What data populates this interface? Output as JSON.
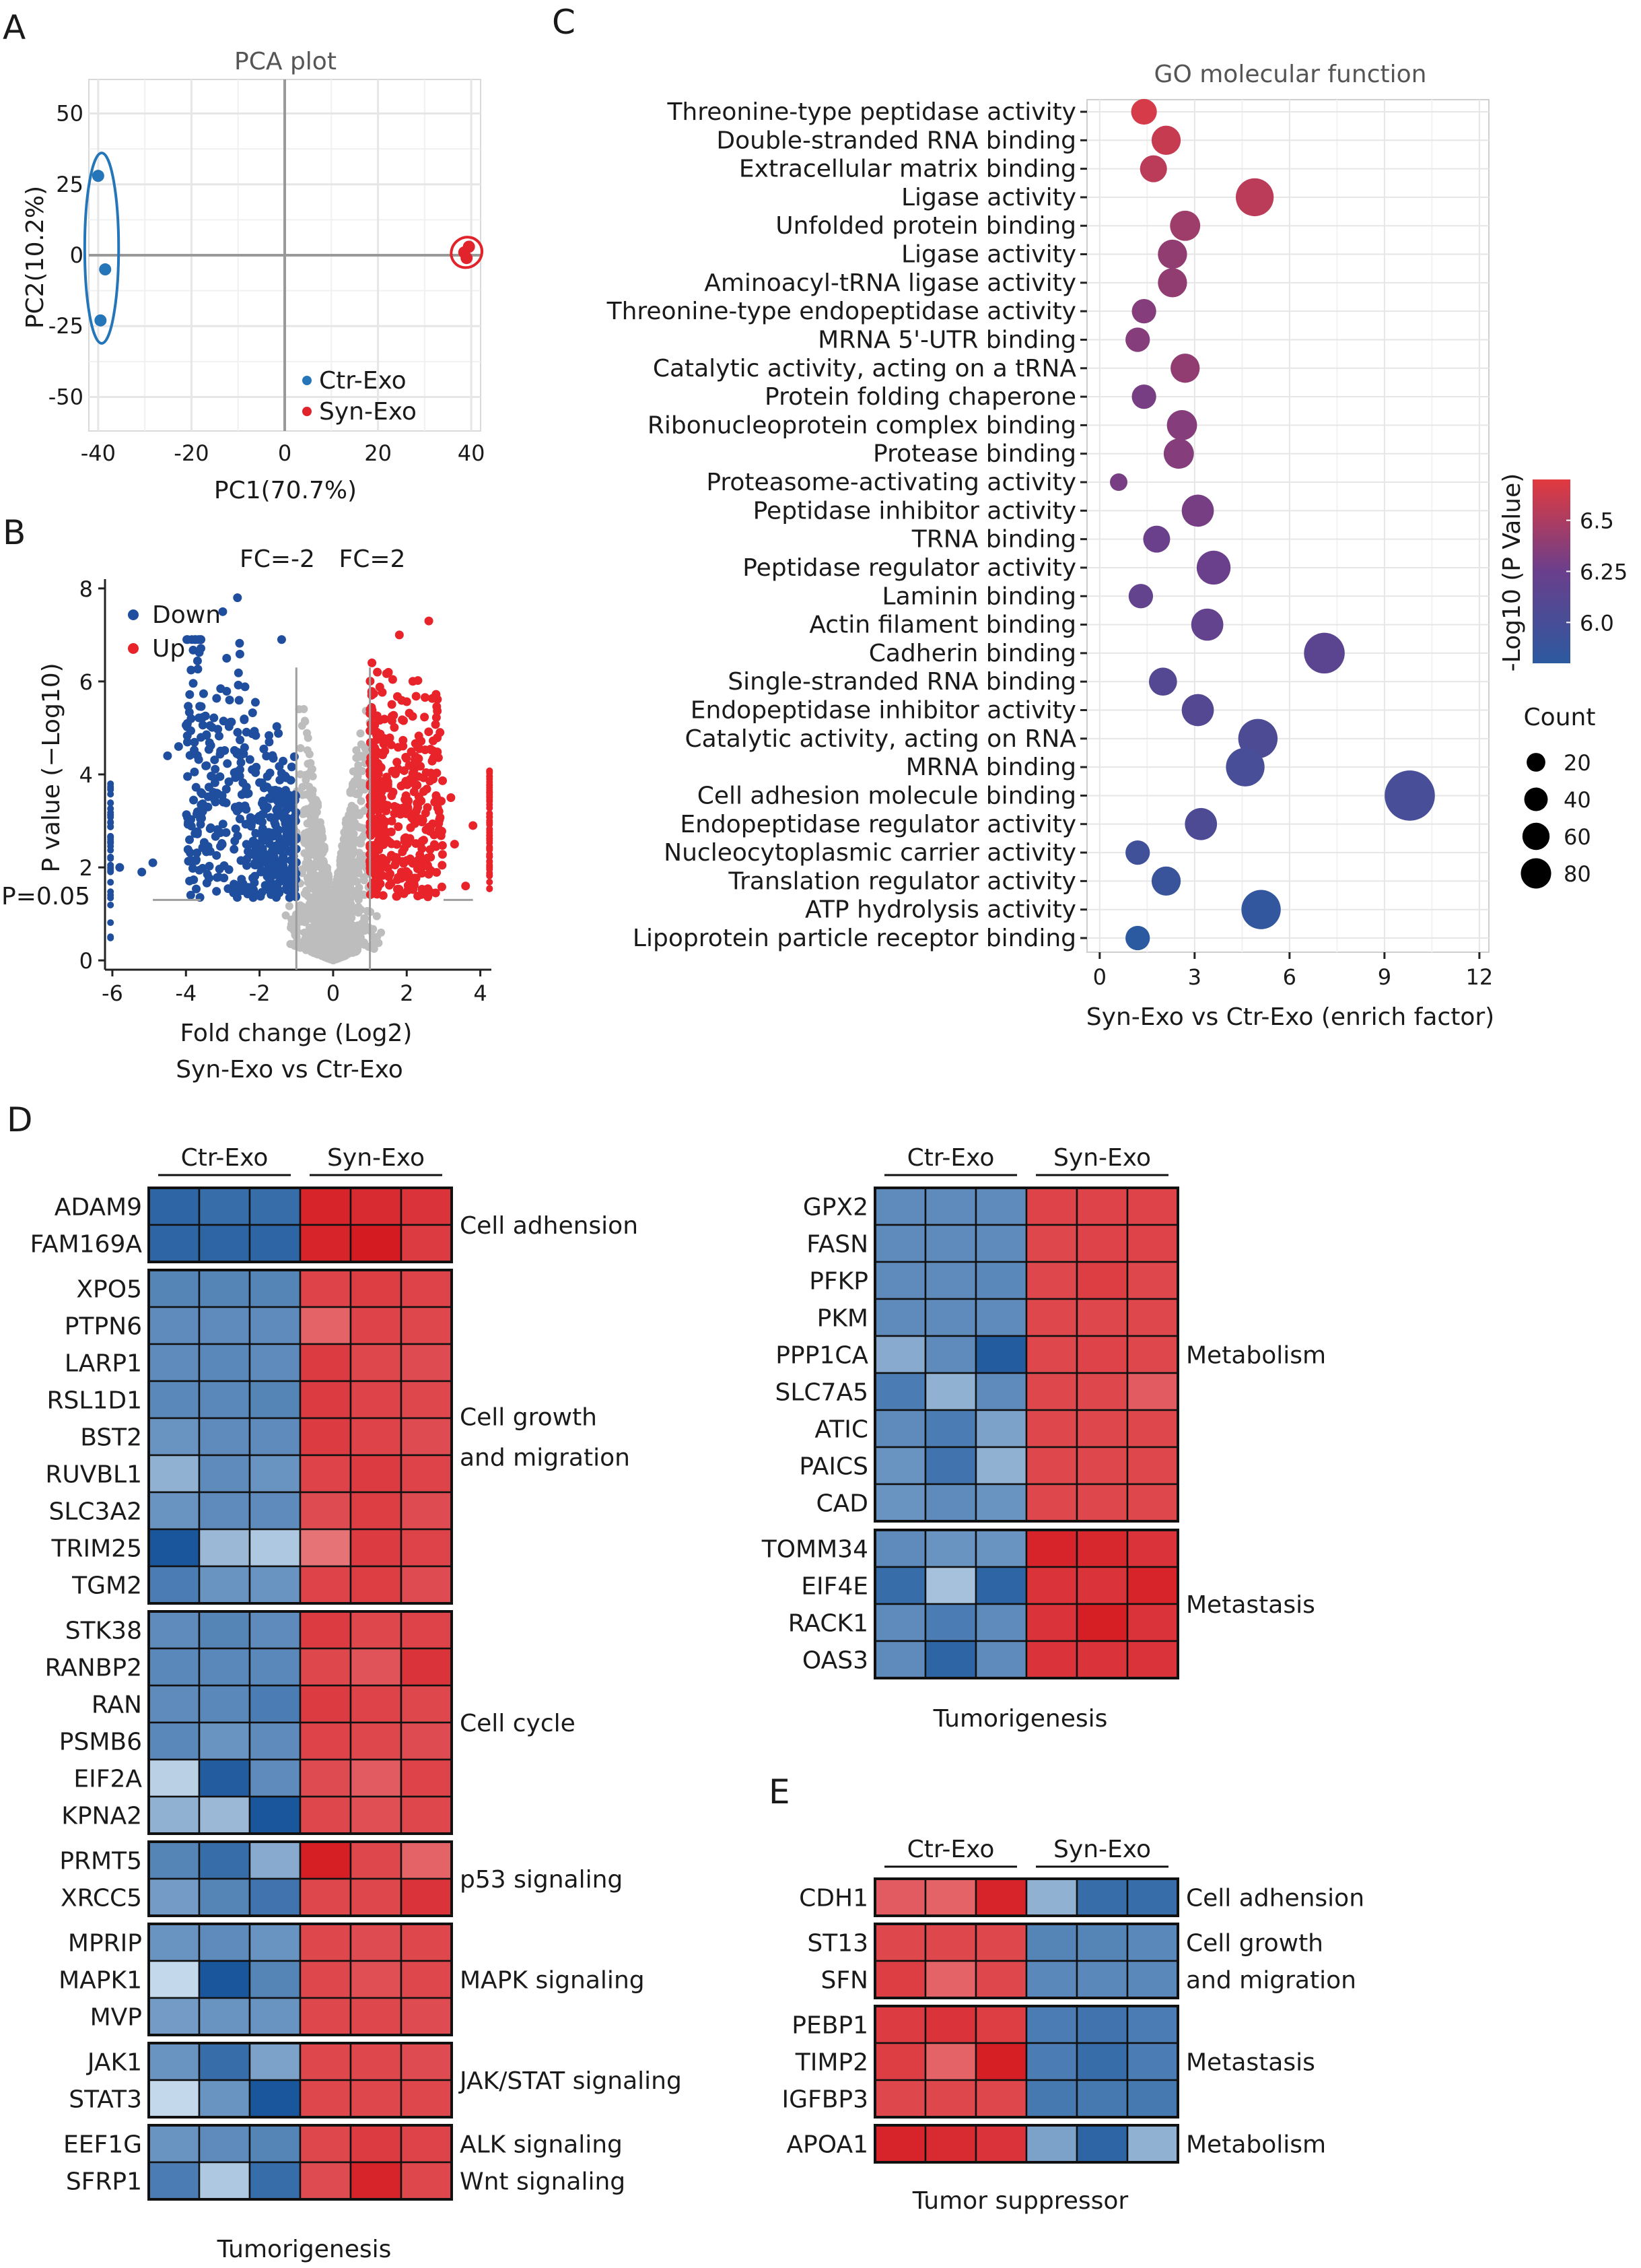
{
  "colors": {
    "red": "#e8232a",
    "blue": "#1f4e9e",
    "grey": "#bdbdbd",
    "pcaBlue": "#2476b8",
    "pcaRed": "#e1242b"
  },
  "panels": {
    "A": "A",
    "B": "B",
    "C": "C",
    "D": "D",
    "E": "E"
  },
  "chart_data": [
    {
      "panel": "A",
      "type": "scatter",
      "title": "PCA plot",
      "xlabel": "PC1(70.7%)",
      "ylabel": "PC2(10.2%)",
      "xlim": [
        -42,
        42
      ],
      "ylim": [
        -62,
        62
      ],
      "xticks": [
        -40,
        -20,
        0,
        20,
        40
      ],
      "yticks": [
        -50,
        -25,
        0,
        25,
        50
      ],
      "series": [
        {
          "name": "Ctr-Exo",
          "color": "#2476b8",
          "points": [
            [
              -40,
              28
            ],
            [
              -38.5,
              -5
            ],
            [
              -39.5,
              -23
            ]
          ]
        },
        {
          "name": "Syn-Exo",
          "color": "#e1242b",
          "points": [
            [
              38.5,
              1
            ],
            [
              39,
              -1
            ],
            [
              39.5,
              3
            ]
          ]
        }
      ],
      "legend": [
        "Ctr-Exo",
        "Syn-Exo"
      ]
    },
    {
      "panel": "B",
      "type": "scatter",
      "subtype": "volcano",
      "xlabel": "Fold change (Log2)",
      "sublabel": "Syn-Exo vs Ctr-Exo",
      "ylabel": "P value (−Log10)",
      "xlim": [
        -6.2,
        4.3
      ],
      "ylim": [
        -0.2,
        8.2
      ],
      "xticks": [
        -6,
        -4,
        -2,
        0,
        2,
        4
      ],
      "yticks": [
        0,
        2,
        4,
        6,
        8
      ],
      "thresholds": {
        "fc_low": -1,
        "fc_high": 1,
        "p": 1.3
      },
      "annotations": [
        "FC=-2",
        "FC=2",
        "P=0.05"
      ],
      "legend": [
        "Down",
        "Up"
      ],
      "categories": {
        "down_count": 480,
        "up_count": 420,
        "ns_count": 1500
      },
      "outliers": [
        [
          -2.6,
          7.8
        ],
        [
          -3.0,
          7.5
        ],
        [
          -1.4,
          6.9
        ],
        [
          2.6,
          7.3
        ],
        [
          1.8,
          7.0
        ],
        [
          -5.8,
          2.0
        ],
        [
          -5.2,
          1.9
        ],
        [
          -4.9,
          2.1
        ],
        [
          -4.2,
          4.6
        ],
        [
          -4.5,
          4.4
        ],
        [
          3.2,
          3.5
        ],
        [
          3.8,
          2.9
        ],
        [
          3.3,
          2.5
        ],
        [
          3.6,
          1.6
        ]
      ]
    },
    {
      "panel": "C",
      "type": "scatter",
      "subtype": "dot-plot",
      "title": "GO molecular function",
      "xlabel": "Syn-Exo vs Ctr-Exo (enrich factor)",
      "xlim": [
        -0.4,
        12.3
      ],
      "xticks": [
        0,
        3,
        6,
        9,
        12
      ],
      "colorbar": {
        "title": "-Log10 (P Value)",
        "ticks": [
          6.0,
          6.25,
          6.5
        ],
        "range": [
          5.8,
          6.7
        ]
      },
      "size_legend": {
        "title": "Count",
        "values": [
          20,
          40,
          60,
          80
        ]
      },
      "terms": [
        {
          "label": "Threonine-type peptidase activity",
          "x": 1.4,
          "count": 14,
          "p": 6.65
        },
        {
          "label": "Double-stranded RNA binding",
          "x": 2.1,
          "count": 20,
          "p": 6.6
        },
        {
          "label": "Extracellular matrix binding",
          "x": 1.7,
          "count": 16,
          "p": 6.55
        },
        {
          "label": "Ligase activity",
          "x": 4.9,
          "count": 40,
          "p": 6.55
        },
        {
          "label": "Unfolded protein binding",
          "x": 2.7,
          "count": 22,
          "p": 6.45
        },
        {
          "label": "Ligase activity",
          "x": 2.3,
          "count": 20,
          "p": 6.4
        },
        {
          "label": "Aminoacyl-tRNA ligase activity",
          "x": 2.3,
          "count": 20,
          "p": 6.4
        },
        {
          "label": "Threonine-type endopeptidase activity",
          "x": 1.4,
          "count": 12,
          "p": 6.35
        },
        {
          "label": "MRNA 5'-UTR binding",
          "x": 1.2,
          "count": 12,
          "p": 6.35
        },
        {
          "label": "Catalytic activity, acting on a tRNA",
          "x": 2.7,
          "count": 20,
          "p": 6.4
        },
        {
          "label": "Protein folding chaperone",
          "x": 1.4,
          "count": 12,
          "p": 6.3
        },
        {
          "label": "Ribonucleoprotein complex binding",
          "x": 2.6,
          "count": 22,
          "p": 6.35
        },
        {
          "label": "Protease binding",
          "x": 2.5,
          "count": 22,
          "p": 6.35
        },
        {
          "label": "Proteasome-activating activity",
          "x": 0.6,
          "count": 4,
          "p": 6.3
        },
        {
          "label": "Peptidase inhibitor activity",
          "x": 3.1,
          "count": 26,
          "p": 6.3
        },
        {
          "label": "TRNA binding",
          "x": 1.8,
          "count": 16,
          "p": 6.25
        },
        {
          "label": "Peptidase regulator activity",
          "x": 3.6,
          "count": 30,
          "p": 6.25
        },
        {
          "label": "Laminin binding",
          "x": 1.3,
          "count": 12,
          "p": 6.2
        },
        {
          "label": "Actin filament binding",
          "x": 3.4,
          "count": 26,
          "p": 6.2
        },
        {
          "label": "Cadherin binding",
          "x": 7.1,
          "count": 48,
          "p": 6.15
        },
        {
          "label": "Single-stranded RNA binding",
          "x": 2.0,
          "count": 18,
          "p": 6.1
        },
        {
          "label": "Endopeptidase inhibitor activity",
          "x": 3.1,
          "count": 26,
          "p": 6.1
        },
        {
          "label": "Catalytic activity, acting on RNA",
          "x": 5.0,
          "count": 44,
          "p": 6.05
        },
        {
          "label": "MRNA binding",
          "x": 4.6,
          "count": 42,
          "p": 6.0
        },
        {
          "label": "Cell adhesion molecule binding",
          "x": 9.8,
          "count": 80,
          "p": 6.0
        },
        {
          "label": "Endopeptidase regulator activity",
          "x": 3.2,
          "count": 26,
          "p": 6.05
        },
        {
          "label": "Nucleocytoplasmic carrier activity",
          "x": 1.2,
          "count": 12,
          "p": 5.95
        },
        {
          "label": "Translation regulator activity",
          "x": 2.1,
          "count": 20,
          "p": 5.9
        },
        {
          "label": "ATP hydrolysis activity",
          "x": 5.1,
          "count": 44,
          "p": 5.85
        },
        {
          "label": "Lipoprotein particle receptor binding",
          "x": 1.2,
          "count": 12,
          "p": 5.8
        }
      ]
    },
    {
      "panel": "D",
      "type": "heatmap",
      "footer": "Tumorigenesis",
      "groups": [
        "Ctr-Exo",
        "Syn-Exo"
      ],
      "blocks": [
        {
          "category": [
            "Cell adhension"
          ],
          "genes": [
            "ADAM9",
            "FAM169A"
          ],
          "values": [
            [
              -0.85,
              -0.8,
              -0.8,
              0.95,
              0.9,
              0.85
            ],
            [
              -0.85,
              -0.85,
              -0.85,
              0.95,
              1.0,
              0.8
            ]
          ]
        },
        {
          "category": [
            "Cell growth",
            "and migration"
          ],
          "genes": [
            "XPO5",
            "PTPN6",
            "LARP1",
            "RSL1D1",
            "BST2",
            "RUVBL1",
            "SLC3A2",
            "TRIM25",
            "TGM2"
          ],
          "values": [
            [
              -0.65,
              -0.65,
              -0.65,
              0.75,
              0.78,
              0.75
            ],
            [
              -0.6,
              -0.6,
              -0.6,
              0.55,
              0.75,
              0.72
            ],
            [
              -0.6,
              -0.62,
              -0.6,
              0.8,
              0.72,
              0.7
            ],
            [
              -0.62,
              -0.62,
              -0.65,
              0.8,
              0.75,
              0.72
            ],
            [
              -0.55,
              -0.6,
              -0.6,
              0.8,
              0.75,
              0.7
            ],
            [
              -0.35,
              -0.6,
              -0.55,
              0.75,
              0.8,
              0.75
            ],
            [
              -0.55,
              -0.6,
              -0.6,
              0.7,
              0.78,
              0.7
            ],
            [
              -0.95,
              -0.3,
              -0.2,
              0.45,
              0.8,
              0.75
            ],
            [
              -0.7,
              -0.55,
              -0.55,
              0.75,
              0.78,
              0.7
            ]
          ]
        },
        {
          "category": [
            "Cell cycle"
          ],
          "genes": [
            "STK38",
            "RANBP2",
            "RAN",
            "PSMB6",
            "EIF2A",
            "KPNA2"
          ],
          "values": [
            [
              -0.6,
              -0.65,
              -0.6,
              0.8,
              0.72,
              0.75
            ],
            [
              -0.62,
              -0.62,
              -0.62,
              0.72,
              0.65,
              0.85
            ],
            [
              -0.6,
              -0.62,
              -0.7,
              0.8,
              0.75,
              0.72
            ],
            [
              -0.62,
              -0.55,
              -0.6,
              0.75,
              0.72,
              0.7
            ],
            [
              -0.15,
              -0.9,
              -0.6,
              0.7,
              0.6,
              0.75
            ],
            [
              -0.35,
              -0.3,
              -0.95,
              0.72,
              0.68,
              0.72
            ]
          ]
        },
        {
          "category": [
            "p53 signaling"
          ],
          "genes": [
            "PRMT5",
            "XRCC5"
          ],
          "values": [
            [
              -0.65,
              -0.8,
              -0.4,
              0.98,
              0.72,
              0.55
            ],
            [
              -0.5,
              -0.65,
              -0.75,
              0.72,
              0.72,
              0.85
            ]
          ]
        },
        {
          "category": [
            "MAPK signaling"
          ],
          "genes": [
            "MPRIP",
            "MAPK1",
            "MVP"
          ],
          "values": [
            [
              -0.55,
              -0.6,
              -0.55,
              0.72,
              0.7,
              0.72
            ],
            [
              -0.1,
              -0.95,
              -0.65,
              0.72,
              0.68,
              0.72
            ],
            [
              -0.5,
              -0.55,
              -0.55,
              0.72,
              0.72,
              0.7
            ]
          ]
        },
        {
          "category": [
            "JAK/STAT signaling"
          ],
          "genes": [
            "JAK1",
            "STAT3"
          ],
          "values": [
            [
              -0.55,
              -0.8,
              -0.45,
              0.72,
              0.72,
              0.7
            ],
            [
              -0.1,
              -0.55,
              -0.95,
              0.72,
              0.72,
              0.72
            ]
          ]
        },
        {
          "category": [
            "ALK signaling",
            "Wnt signaling"
          ],
          "genes": [
            "EEF1G",
            "SFRP1"
          ],
          "values": [
            [
              -0.55,
              -0.6,
              -0.65,
              0.72,
              0.8,
              0.75
            ],
            [
              -0.7,
              -0.2,
              -0.8,
              0.7,
              0.95,
              0.72
            ]
          ]
        },
        {
          "category": [
            "Metabolism"
          ],
          "genes": [
            "GPX2",
            "FASN",
            "PFKP",
            "PKM",
            "PPP1CA",
            "SLC7A5",
            "ATIC",
            "PAICS",
            "CAD"
          ],
          "values": [
            [
              -0.6,
              -0.6,
              -0.6,
              0.75,
              0.75,
              0.75
            ],
            [
              -0.6,
              -0.6,
              -0.6,
              0.72,
              0.75,
              0.75
            ],
            [
              -0.6,
              -0.6,
              -0.62,
              0.72,
              0.78,
              0.72
            ],
            [
              -0.6,
              -0.6,
              -0.6,
              0.72,
              0.72,
              0.72
            ],
            [
              -0.4,
              -0.6,
              -0.9,
              0.72,
              0.75,
              0.72
            ],
            [
              -0.7,
              -0.35,
              -0.6,
              0.72,
              0.72,
              0.6
            ],
            [
              -0.6,
              -0.7,
              -0.45,
              0.72,
              0.72,
              0.72
            ],
            [
              -0.55,
              -0.75,
              -0.35,
              0.72,
              0.72,
              0.72
            ],
            [
              -0.55,
              -0.6,
              -0.55,
              0.72,
              0.72,
              0.72
            ]
          ]
        },
        {
          "category": [
            "Metastasis"
          ],
          "genes": [
            "TOMM34",
            "EIF4E",
            "RACK1",
            "OAS3"
          ],
          "values": [
            [
              -0.6,
              -0.55,
              -0.55,
              0.95,
              0.92,
              0.85
            ],
            [
              -0.8,
              -0.25,
              -0.85,
              0.85,
              0.85,
              0.95
            ],
            [
              -0.6,
              -0.7,
              -0.6,
              0.85,
              0.98,
              0.85
            ],
            [
              -0.6,
              -0.85,
              -0.6,
              0.85,
              0.85,
              0.85
            ]
          ]
        }
      ]
    },
    {
      "panel": "E",
      "type": "heatmap",
      "footer": "Tumor suppressor",
      "groups": [
        "Ctr-Exo",
        "Syn-Exo"
      ],
      "blocks": [
        {
          "category": [
            "Cell adhension"
          ],
          "genes": [
            "CDH1"
          ],
          "values": [
            [
              0.6,
              0.55,
              0.95,
              -0.35,
              -0.8,
              -0.8
            ]
          ]
        },
        {
          "category": [
            "Cell growth",
            "and migration"
          ],
          "genes": [
            "ST13",
            "SFN"
          ],
          "values": [
            [
              0.72,
              0.72,
              0.72,
              -0.65,
              -0.65,
              -0.62
            ],
            [
              0.78,
              0.55,
              0.72,
              -0.62,
              -0.62,
              -0.62
            ]
          ]
        },
        {
          "category": [
            "Metastasis"
          ],
          "genes": [
            "PEBP1",
            "TIMP2",
            "IGFBP3"
          ],
          "values": [
            [
              0.8,
              0.85,
              0.78,
              -0.7,
              -0.75,
              -0.7
            ],
            [
              0.78,
              0.55,
              0.98,
              -0.7,
              -0.8,
              -0.7
            ],
            [
              0.72,
              0.72,
              0.72,
              -0.72,
              -0.72,
              -0.72
            ]
          ]
        },
        {
          "category": [
            "Metabolism"
          ],
          "genes": [
            "APOA1"
          ],
          "values": [
            [
              0.95,
              0.9,
              0.85,
              -0.45,
              -0.85,
              -0.35
            ]
          ]
        }
      ]
    }
  ]
}
